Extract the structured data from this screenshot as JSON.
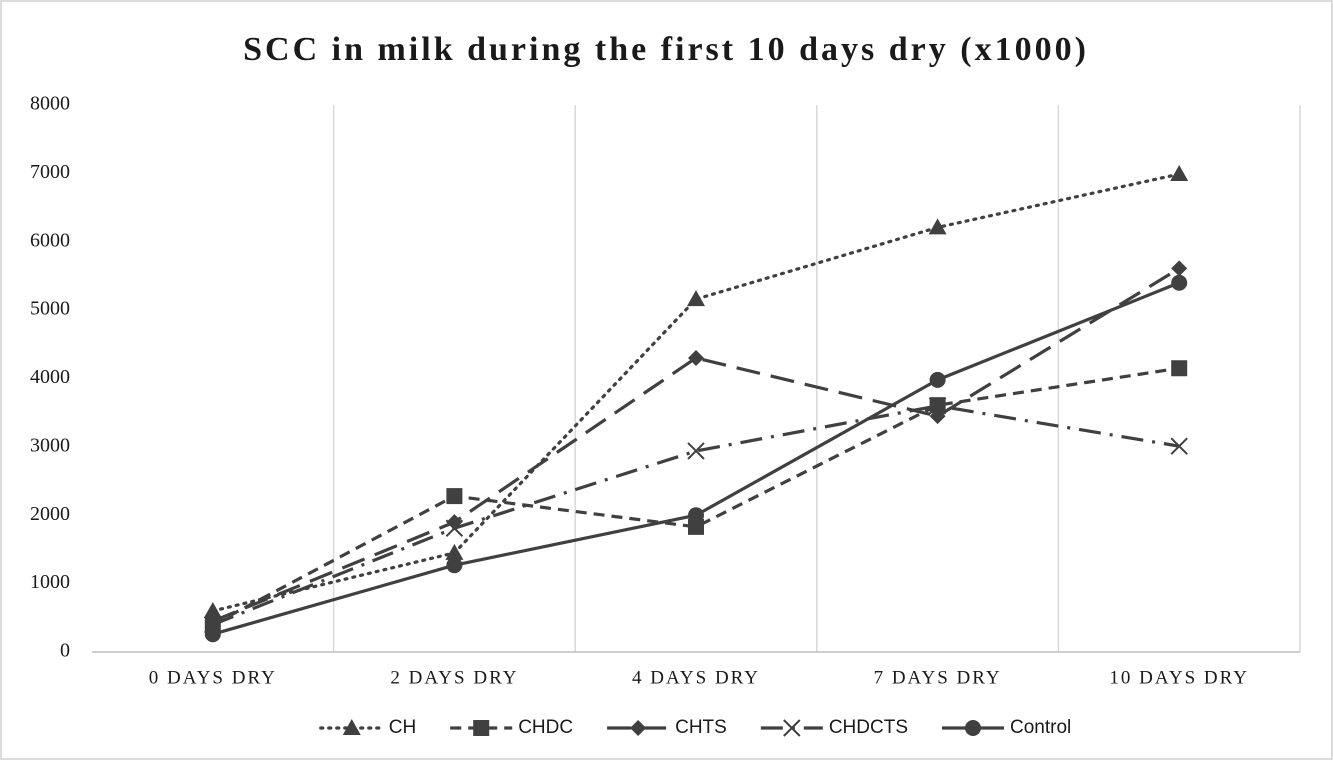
{
  "chart_data": {
    "type": "line",
    "title": "SCC in milk during the first 10 days dry (x1000)",
    "categories": [
      "0 DAYS DRY",
      "2 DAYS DRY",
      "4 DAYS DRY",
      "7 DAYS DRY",
      "10 DAYS DRY"
    ],
    "series": [
      {
        "name": "CH",
        "color": "#404040",
        "line_style": "dotted",
        "marker": "triangle",
        "values": [
          600,
          1450,
          5160,
          6210,
          6990
        ]
      },
      {
        "name": "CHDC",
        "color": "#404040",
        "line_style": "dashed",
        "marker": "square",
        "values": [
          400,
          2280,
          1830,
          3610,
          4150
        ]
      },
      {
        "name": "CHTS",
        "color": "#404040",
        "line_style": "long-dash",
        "marker": "diamond",
        "values": [
          450,
          1900,
          4300,
          3450,
          5610
        ]
      },
      {
        "name": "CHDCTS",
        "color": "#404040",
        "line_style": "dash-dot",
        "marker": "x",
        "values": [
          400,
          1810,
          2940,
          3600,
          3010
        ]
      },
      {
        "name": "Control",
        "color": "#404040",
        "line_style": "solid",
        "marker": "circle",
        "values": [
          260,
          1270,
          2000,
          3980,
          5400
        ]
      }
    ],
    "ylim": [
      0,
      8000
    ],
    "yticks": [
      0,
      1000,
      2000,
      3000,
      4000,
      5000,
      6000,
      7000,
      8000
    ],
    "grid": "vertical",
    "legend": "bottom"
  }
}
